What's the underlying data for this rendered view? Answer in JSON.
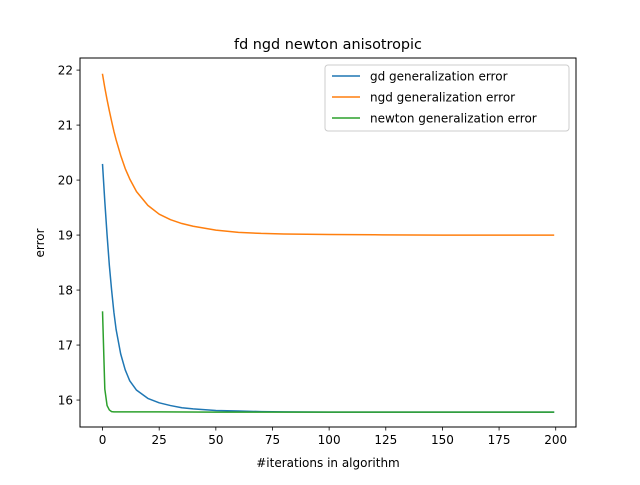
{
  "chart_data": {
    "type": "line",
    "title": "fd ngd newton anisotropic",
    "xlabel": "#iterations in algorithm",
    "ylabel": "error",
    "xlim": [
      -9.95,
      208.95
    ],
    "ylim": [
      15.51,
      22.22
    ],
    "xticks": [
      0,
      25,
      50,
      75,
      100,
      125,
      150,
      175,
      200
    ],
    "yticks": [
      16,
      17,
      18,
      19,
      20,
      21,
      22
    ],
    "grid": false,
    "legend_position": "top-right",
    "series": [
      {
        "name": "gd generalization error",
        "color": "#1f77b4",
        "x": [
          0,
          1,
          2,
          3,
          4,
          5,
          6,
          8,
          10,
          12,
          15,
          20,
          25,
          30,
          35,
          40,
          50,
          60,
          70,
          80,
          100,
          120,
          150,
          175,
          199
        ],
        "y": [
          20.28,
          19.61,
          19.0,
          18.45,
          18.0,
          17.6,
          17.28,
          16.84,
          16.55,
          16.35,
          16.18,
          16.03,
          15.95,
          15.9,
          15.86,
          15.84,
          15.81,
          15.8,
          15.79,
          15.785,
          15.78,
          15.78,
          15.78,
          15.78,
          15.78
        ]
      },
      {
        "name": "ngd generalization error",
        "color": "#ff7f0e",
        "x": [
          0,
          1,
          2,
          3,
          4,
          5,
          6,
          8,
          10,
          12,
          15,
          20,
          25,
          30,
          35,
          40,
          50,
          60,
          70,
          80,
          100,
          120,
          150,
          175,
          199
        ],
        "y": [
          21.92,
          21.68,
          21.46,
          21.26,
          21.07,
          20.89,
          20.73,
          20.45,
          20.21,
          20.02,
          19.79,
          19.54,
          19.38,
          19.28,
          19.21,
          19.16,
          19.09,
          19.05,
          19.03,
          19.02,
          19.01,
          19.005,
          19.0,
          19.0,
          19.0
        ]
      },
      {
        "name": "newton generalization error",
        "color": "#2ca02c",
        "x": [
          0,
          1,
          2,
          3,
          4,
          5,
          10,
          25,
          50,
          100,
          150,
          199
        ],
        "y": [
          17.6,
          16.2,
          15.9,
          15.82,
          15.79,
          15.785,
          15.785,
          15.785,
          15.78,
          15.78,
          15.78,
          15.78
        ]
      }
    ]
  }
}
